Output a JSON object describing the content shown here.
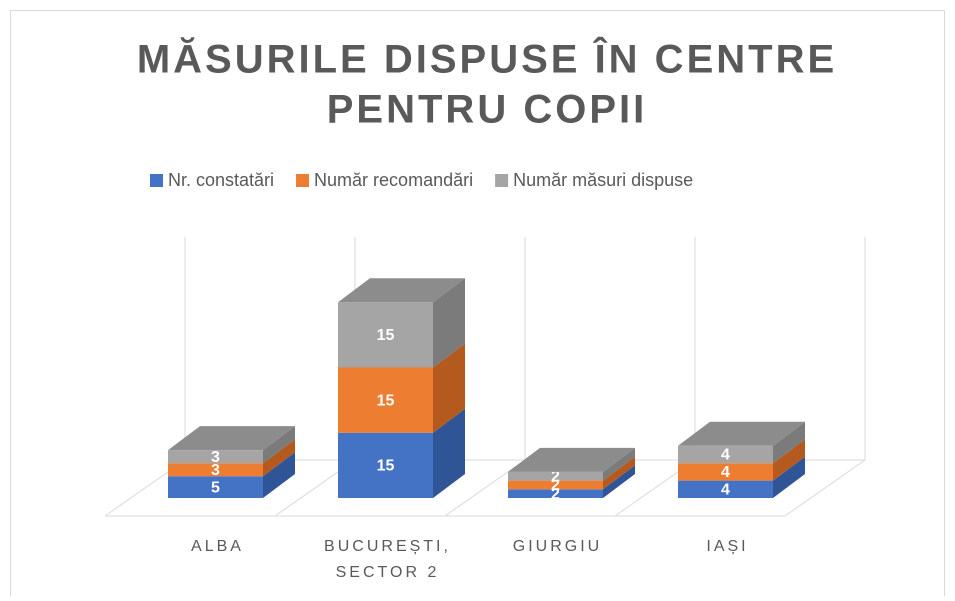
{
  "chart_data": {
    "type": "bar3d_stacked",
    "title": [
      "MĂSURILE DISPUSE ÎN CENTRE",
      "PENTRU COPII"
    ],
    "categories": [
      [
        "ALBA"
      ],
      [
        "BUCUREȘTI,",
        "SECTOR 2"
      ],
      [
        "GIURGIU"
      ],
      [
        "IAȘI"
      ]
    ],
    "series": [
      {
        "name": "Nr. constatări",
        "color": "#4472c4",
        "side": "#2f5597",
        "values": [
          5,
          15,
          2,
          4
        ]
      },
      {
        "name": "Număr recomandări",
        "color": "#ed7d31",
        "side": "#b45a1e",
        "values": [
          3,
          15,
          2,
          4
        ]
      },
      {
        "name": "Număr măsuri dispuse",
        "color": "#a5a5a5",
        "side": "#7b7b7b",
        "top": "#8c8c8c",
        "values": [
          3,
          15,
          2,
          4
        ]
      }
    ]
  }
}
